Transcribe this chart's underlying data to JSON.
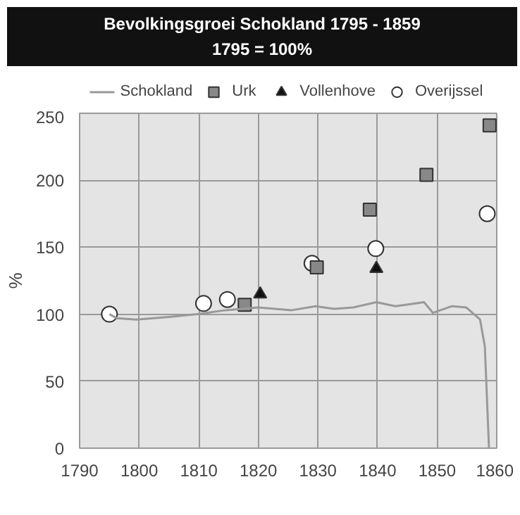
{
  "chart_data": {
    "type": "scatter",
    "title": "Bevolkingsgroei Schokland 1795 - 1859",
    "subtitle": "1795 = 100%",
    "ylabel": "%",
    "xlim": [
      1790,
      1860
    ],
    "xticks": [
      1790,
      1800,
      1810,
      1820,
      1830,
      1840,
      1850,
      1860
    ],
    "ylim": [
      0,
      250
    ],
    "yticks": [
      0,
      50,
      100,
      150,
      200,
      250
    ],
    "grid": true,
    "legend": "top",
    "series": [
      {
        "name": "Schokland",
        "type": "line",
        "color": "#999999",
        "marker": "none",
        "x": [
          1795,
          1796.3,
          1799.5,
          1805,
          1809.8,
          1814.5,
          1820,
          1825.6,
          1829.6,
          1832.7,
          1835.9,
          1839.8,
          1843,
          1847.8,
          1849.3,
          1852.5,
          1854.9,
          1857.2,
          1858,
          1858.7
        ],
        "values": [
          100,
          97,
          96,
          98,
          100,
          103,
          105,
          103,
          106,
          104,
          105,
          109,
          106,
          109,
          101,
          106,
          105,
          96,
          76,
          0
        ]
      },
      {
        "name": "Urk",
        "color": "#888888",
        "marker": "square",
        "x": [
          1817.7,
          1829.8,
          1838.7,
          1848.2,
          1858.8
        ],
        "values": [
          107,
          135,
          178,
          204,
          241
        ]
      },
      {
        "name": "Vollenhove",
        "color": "#111111",
        "marker": "triangle",
        "x": [
          1820.3,
          1839.8
        ],
        "values": [
          115,
          134
        ]
      },
      {
        "name": "Overijssel",
        "color": "#ffffff",
        "marker": "circle",
        "x": [
          1795,
          1810.8,
          1814.8,
          1829,
          1839.7,
          1858.4
        ],
        "values": [
          100,
          108,
          111,
          138,
          149,
          175
        ]
      }
    ]
  }
}
